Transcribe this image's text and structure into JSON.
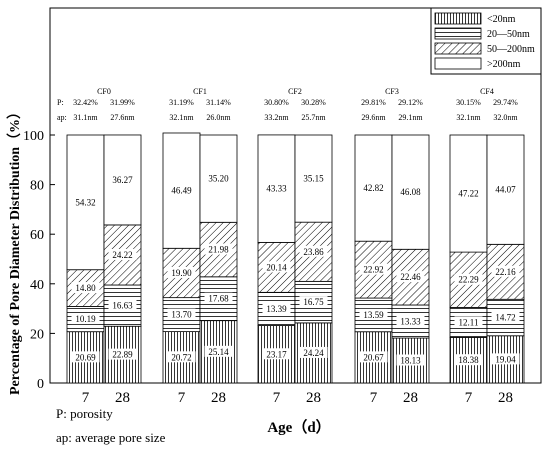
{
  "chart_data": {
    "type": "bar",
    "stacked": true,
    "ylabel": "Percentage of Pore Diameter Distribution（%）",
    "xlabel": "Age（d）",
    "ylim": [
      0,
      100
    ],
    "yticks": [
      "0",
      "20",
      "40",
      "60",
      "80",
      "100"
    ],
    "legend_position": "top-right",
    "series": [
      {
        "name": "<20nm",
        "pattern": "vertical"
      },
      {
        "name": "20—50nm",
        "pattern": "horizontal"
      },
      {
        "name": "50—200nm",
        "pattern": "diagonal"
      },
      {
        "name": ">200nm",
        "pattern": "none"
      }
    ],
    "groups": [
      {
        "name": "CF0",
        "bars": [
          {
            "age": "7",
            "porosity": "32.42%",
            "ap": "31.1nm",
            "values": [
              20.69,
              10.19,
              14.8,
              54.32
            ],
            "labels": [
              "20.69",
              "10.19",
              "14.80",
              "54.32"
            ]
          },
          {
            "age": "28",
            "porosity": "31.99%",
            "ap": "27.6nm",
            "values": [
              22.89,
              16.63,
              24.22,
              36.27
            ],
            "labels": [
              "22.89",
              "16.63",
              "24.22",
              "36.27"
            ]
          }
        ]
      },
      {
        "name": "CF1",
        "bars": [
          {
            "age": "7",
            "porosity": "31.19%",
            "ap": "32.1nm",
            "values": [
              20.72,
              13.7,
              19.9,
              46.49
            ],
            "labels": [
              "20.72",
              "13.70",
              "19.90",
              "46.49"
            ]
          },
          {
            "age": "28",
            "porosity": "31.14%",
            "ap": "26.0nm",
            "values": [
              25.14,
              17.68,
              21.98,
              35.2
            ],
            "labels": [
              "25.14",
              "17.68",
              "21.98",
              "35.20"
            ]
          }
        ]
      },
      {
        "name": "CF2",
        "bars": [
          {
            "age": "7",
            "porosity": "30.80%",
            "ap": "33.2nm",
            "values": [
              23.17,
              13.39,
              20.14,
              43.33
            ],
            "labels": [
              "23.17",
              "13.39",
              "20.14",
              "43.33"
            ]
          },
          {
            "age": "28",
            "porosity": "30.28%",
            "ap": "25.7nm",
            "values": [
              24.24,
              16.75,
              23.86,
              35.15
            ],
            "labels": [
              "24.24",
              "16.75",
              "23.86",
              "35.15"
            ]
          }
        ]
      },
      {
        "name": "CF3",
        "bars": [
          {
            "age": "7",
            "porosity": "29.81%",
            "ap": "29.6nm",
            "values": [
              20.67,
              13.59,
              22.92,
              42.82
            ],
            "labels": [
              "20.67",
              "13.59",
              "22.92",
              "42.82"
            ]
          },
          {
            "age": "28",
            "porosity": "29.12%",
            "ap": "29.1nm",
            "values": [
              18.13,
              13.33,
              22.46,
              46.08
            ],
            "labels": [
              "18.13",
              "13.33",
              "22.46",
              "46.08"
            ]
          }
        ]
      },
      {
        "name": "CF4",
        "bars": [
          {
            "age": "7",
            "porosity": "30.15%",
            "ap": "32.1nm",
            "values": [
              18.38,
              12.11,
              22.29,
              47.22
            ],
            "labels": [
              "18.38",
              "12.11",
              "22.29",
              "47.22"
            ]
          },
          {
            "age": "28",
            "porosity": "29.74%",
            "ap": "32.0nm",
            "values": [
              19.04,
              14.72,
              22.16,
              44.07
            ],
            "labels": [
              "19.04",
              "14.72",
              "22.16",
              "44.07"
            ]
          }
        ]
      }
    ],
    "row_labels": {
      "porosity": "P:",
      "ap": "ap:"
    }
  },
  "notes": {
    "porosity": "P: porosity",
    "ap": "ap: average pore size"
  }
}
